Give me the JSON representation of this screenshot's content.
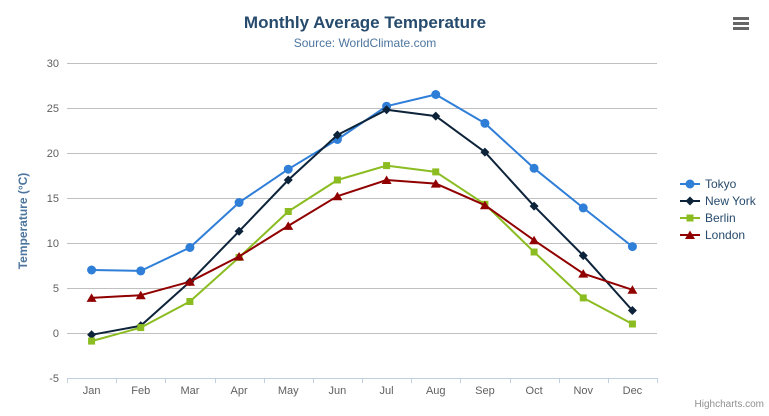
{
  "header": {
    "title": "Monthly Average Temperature",
    "subtitle": "Source: WorldClimate.com"
  },
  "export_menu": {
    "icon": "hamburger-icon"
  },
  "credits_label": "Highcharts.com",
  "colors": {
    "title_text": "#274b6d",
    "subtitle_text": "#4d759e",
    "axis_title_text": "#4d759e",
    "tick_label_text": "#606060",
    "gridline": "#c0c0c0",
    "axis_line": "#c0d0e0",
    "legend_text": "#274b6d",
    "credits_text": "#909090"
  },
  "chart_data": {
    "type": "line",
    "title": "Monthly Average Temperature",
    "subtitle": "Source: WorldClimate.com",
    "xlabel": "",
    "ylabel": "Temperature (°C)",
    "categories": [
      "Jan",
      "Feb",
      "Mar",
      "Apr",
      "May",
      "Jun",
      "Jul",
      "Aug",
      "Sep",
      "Oct",
      "Nov",
      "Dec"
    ],
    "ylim": [
      -5,
      30
    ],
    "ytick_step": 5,
    "grid": true,
    "legend_position": "right",
    "series": [
      {
        "name": "Tokyo",
        "color": "#2f7ed8",
        "marker": "circle",
        "values": [
          7.0,
          6.9,
          9.5,
          14.5,
          18.2,
          21.5,
          25.2,
          26.5,
          23.3,
          18.3,
          13.9,
          9.6
        ]
      },
      {
        "name": "New York",
        "color": "#0d233a",
        "marker": "diamond",
        "values": [
          -0.2,
          0.8,
          5.7,
          11.3,
          17.0,
          22.0,
          24.8,
          24.1,
          20.1,
          14.1,
          8.6,
          2.5
        ]
      },
      {
        "name": "Berlin",
        "color": "#8bbc21",
        "marker": "square",
        "values": [
          -0.9,
          0.6,
          3.5,
          8.4,
          13.5,
          17.0,
          18.6,
          17.9,
          14.3,
          9.0,
          3.9,
          1.0
        ]
      },
      {
        "name": "London",
        "color": "#910000",
        "marker": "triangle",
        "values": [
          3.9,
          4.2,
          5.7,
          8.5,
          11.9,
          15.2,
          17.0,
          16.6,
          14.2,
          10.3,
          6.6,
          4.8
        ]
      }
    ]
  }
}
